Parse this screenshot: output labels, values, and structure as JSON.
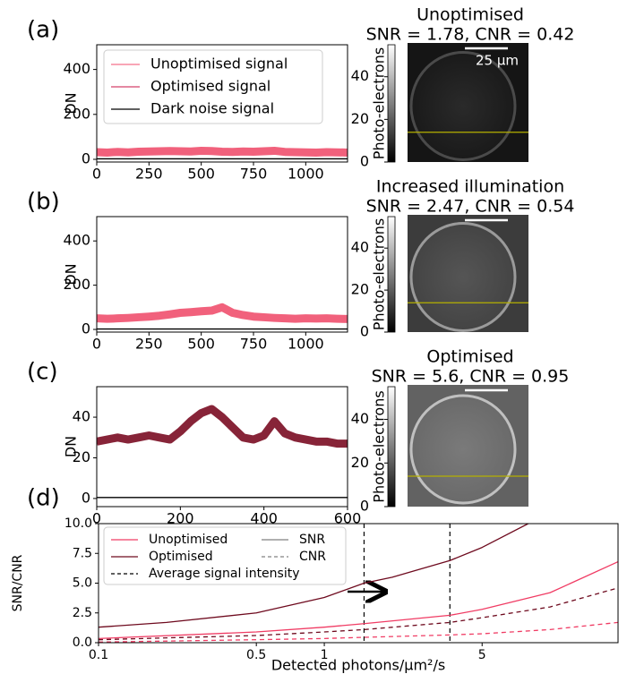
{
  "chart_data": [
    {
      "type": "line",
      "panel_label": "(a)",
      "title": "Unoptimised",
      "subtitle": "SNR = 1.78, CNR = 0.42",
      "scale_bar": "25 µm",
      "ylabel": "DN",
      "xlim": [
        0,
        1200
      ],
      "xticks": [
        0,
        250,
        500,
        750,
        1000
      ],
      "ylim": [
        -12,
        510
      ],
      "yticks": [
        0,
        200,
        400
      ],
      "x": [
        0,
        50,
        100,
        150,
        200,
        250,
        300,
        350,
        400,
        450,
        500,
        550,
        600,
        650,
        700,
        750,
        800,
        850,
        900,
        950,
        1000,
        1050,
        1100,
        1150,
        1200
      ],
      "series": [
        {
          "color": "#f0506e",
          "values": [
            32,
            30,
            33,
            31,
            34,
            35,
            36,
            37,
            36,
            35,
            38,
            37,
            34,
            33,
            35,
            34,
            36,
            38,
            33,
            32,
            31,
            30,
            32,
            31,
            30
          ]
        },
        {
          "color": "#000000",
          "values": [
            2,
            2,
            2,
            2,
            2,
            2,
            2,
            2,
            2,
            2,
            2,
            2,
            2,
            2,
            2,
            2,
            2,
            2,
            2,
            2,
            2,
            2,
            2,
            2,
            2
          ]
        }
      ],
      "legend": [
        {
          "label": "Unoptimised signal",
          "color": "#f5708a"
        },
        {
          "label": "Optimised signal",
          "color": "#d4406a"
        },
        {
          "label": "Dark noise signal",
          "color": "#000000"
        }
      ],
      "legend_loc": "upper left",
      "colorbar": {
        "label": "Photo-electrons",
        "lim": [
          0,
          55
        ],
        "ticks": [
          0,
          20,
          40
        ]
      }
    },
    {
      "type": "line",
      "panel_label": "(b)",
      "title": "Increased illumination",
      "subtitle": "SNR = 2.47, CNR = 0.54",
      "ylabel": "DN",
      "xlim": [
        0,
        1200
      ],
      "xticks": [
        0,
        250,
        500,
        750,
        1000
      ],
      "ylim": [
        -12,
        510
      ],
      "yticks": [
        0,
        200,
        400
      ],
      "x": [
        0,
        50,
        100,
        150,
        200,
        250,
        300,
        350,
        400,
        450,
        500,
        550,
        600,
        650,
        700,
        750,
        800,
        850,
        900,
        950,
        1000,
        1050,
        1100,
        1150,
        1200
      ],
      "series": [
        {
          "color": "#f0506e",
          "values": [
            50,
            48,
            50,
            52,
            55,
            58,
            62,
            68,
            75,
            78,
            82,
            85,
            100,
            75,
            65,
            58,
            55,
            52,
            50,
            48,
            50,
            49,
            50,
            48,
            47
          ]
        },
        {
          "color": "#000000",
          "values": [
            2,
            2,
            2,
            2,
            2,
            2,
            2,
            2,
            2,
            2,
            2,
            2,
            2,
            2,
            2,
            2,
            2,
            2,
            2,
            2,
            2,
            2,
            2,
            2,
            2
          ]
        }
      ],
      "colorbar": {
        "label": "Photo-electrons",
        "lim": [
          0,
          55
        ],
        "ticks": [
          0,
          20,
          40
        ]
      }
    },
    {
      "type": "line",
      "panel_label": "(c)",
      "title": "Optimised",
      "subtitle": "SNR = 5.6, CNR = 0.95",
      "ylabel": "DN",
      "xlim": [
        0,
        600
      ],
      "xticks": [
        0,
        200,
        400,
        600
      ],
      "ylim": [
        -4,
        55
      ],
      "yticks": [
        0,
        20,
        40
      ],
      "x": [
        0,
        25,
        50,
        75,
        100,
        125,
        150,
        175,
        200,
        225,
        250,
        275,
        300,
        325,
        350,
        375,
        400,
        425,
        450,
        475,
        500,
        525,
        550,
        575,
        600
      ],
      "series": [
        {
          "color": "#7a0c22",
          "values": [
            28,
            29,
            30,
            29,
            30,
            31,
            30,
            29,
            33,
            38,
            42,
            44,
            40,
            35,
            30,
            29,
            31,
            38,
            32,
            30,
            29,
            28,
            28,
            27,
            27
          ]
        },
        {
          "color": "#000000",
          "values": [
            0.5,
            0.5,
            0.5,
            0.5,
            0.5,
            0.5,
            0.5,
            0.5,
            0.5,
            0.5,
            0.5,
            0.5,
            0.5,
            0.5,
            0.5,
            0.5,
            0.5,
            0.5,
            0.5,
            0.5,
            0.5,
            0.5,
            0.5,
            0.5,
            0.5
          ]
        }
      ],
      "colorbar": {
        "label": "Photo-electrons",
        "lim": [
          0,
          55
        ],
        "ticks": [
          0,
          20,
          40
        ]
      }
    },
    {
      "type": "line",
      "panel_label": "(d)",
      "xscale": "log",
      "xlabel": "Detected photons/µm²/s",
      "ylabel": "SNR/CNR",
      "xlim": [
        0.1,
        20
      ],
      "xticks": [
        0.1,
        0.5,
        1,
        5
      ],
      "ylim": [
        0,
        10
      ],
      "yticks": [
        {
          "value": 0,
          "label": "0.0"
        },
        2.5,
        {
          "value": 5,
          "label": "5.0"
        },
        7.5,
        {
          "value": 10,
          "label": "10.0"
        }
      ],
      "series": [
        {
          "color": "#f03c64",
          "dash": false,
          "x": [
            0.1,
            0.5,
            1,
            1.5,
            3.6,
            5,
            10,
            20
          ],
          "values": [
            0.35,
            0.9,
            1.3,
            1.6,
            2.3,
            2.8,
            4.2,
            6.8
          ]
        },
        {
          "color": "#6e0a1e",
          "dash": false,
          "x": [
            0.1,
            0.2,
            0.5,
            1,
            1.5,
            2,
            3.6,
            5,
            8
          ],
          "values": [
            1.3,
            1.7,
            2.5,
            3.8,
            5.0,
            5.5,
            6.9,
            8.0,
            10
          ]
        },
        {
          "color": "#6e0a1e",
          "dash": true,
          "x": [
            0.1,
            0.5,
            1,
            1.5,
            3.6,
            5,
            10,
            20
          ],
          "values": [
            0.25,
            0.6,
            0.9,
            1.1,
            1.7,
            2.1,
            3.0,
            4.6
          ]
        },
        {
          "color": "#f03c64",
          "dash": true,
          "x": [
            0.1,
            0.5,
            1,
            1.5,
            3.6,
            5,
            10,
            20
          ],
          "values": [
            0.05,
            0.25,
            0.35,
            0.45,
            0.65,
            0.75,
            1.1,
            1.7
          ]
        }
      ],
      "vlines": [
        1.5,
        3.6
      ],
      "legend": [
        {
          "label": "Unoptimised",
          "color": "#f03c64",
          "dash": false
        },
        {
          "label": "Optimised",
          "color": "#6e0a1e",
          "dash": false
        },
        {
          "label": "Average signal intensity",
          "color": "#000000",
          "dash": true
        },
        {
          "label": "SNR",
          "color": "#808080",
          "dash": false
        },
        {
          "label": "CNR",
          "color": "#808080",
          "dash": true
        }
      ],
      "legend_loc": "upper left"
    }
  ]
}
